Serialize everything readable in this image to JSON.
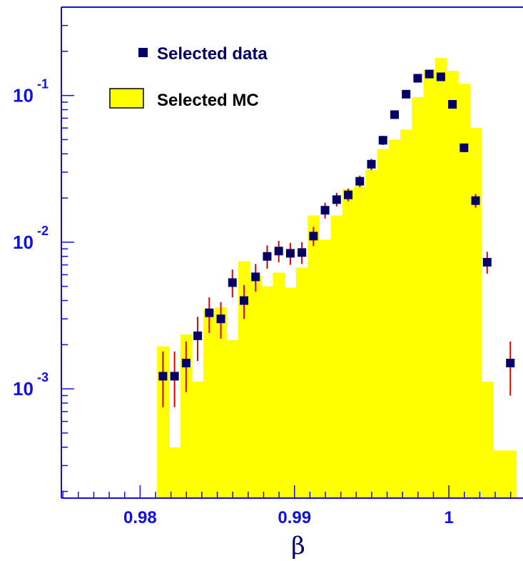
{
  "colors": {
    "axis": "#1010e0",
    "mc_fill": "#ffff00",
    "data_marker": "#000066",
    "error_bar": "#dd0000",
    "text_dark": "#000066",
    "text_black": "#000000"
  },
  "chart_data": {
    "type": "histogram",
    "xlabel": "β",
    "xlim": [
      0.9749,
      1.0048
    ],
    "ylim": [
      0.00018,
      0.4
    ],
    "y_scale": "log",
    "x_ticks": [
      {
        "value": 0.98,
        "label": "0.98"
      },
      {
        "value": 0.99,
        "label": "0.99"
      },
      {
        "value": 1.0,
        "label": "1"
      }
    ],
    "y_ticks": [
      {
        "value": 0.1,
        "base": "10",
        "exp": "-1"
      },
      {
        "value": 0.01,
        "base": "10",
        "exp": "-2"
      },
      {
        "value": 0.001,
        "base": "10",
        "exp": "-3"
      }
    ],
    "legend": {
      "position": "top-left",
      "entries": [
        {
          "label": "Selected data",
          "kind": "marker"
        },
        {
          "label": "Selected MC",
          "kind": "fill"
        }
      ]
    },
    "series": [
      {
        "name": "Selected MC",
        "kind": "histogram",
        "bin_edges": [
          0.9811,
          0.98185,
          0.9826,
          0.98335,
          0.9841,
          0.98485,
          0.9856,
          0.98635,
          0.9871,
          0.98785,
          0.9886,
          0.98935,
          0.9901,
          0.99085,
          0.9916,
          0.99235,
          0.9931,
          0.99385,
          0.9946,
          0.99535,
          0.9961,
          0.99685,
          0.9976,
          0.99835,
          0.9991,
          0.99985,
          1.0006,
          1.00135,
          1.0021,
          1.00285,
          1.0036,
          1.00435
        ],
        "values": [
          0.00195,
          0.0004,
          0.00235,
          0.00112,
          0.00345,
          0.0036,
          0.00215,
          0.0074,
          0.0059,
          0.005,
          0.0062,
          0.0049,
          0.0067,
          0.0152,
          0.0104,
          0.0152,
          0.023,
          0.024,
          0.031,
          0.043,
          0.05,
          0.0585,
          0.0975,
          0.15,
          0.18,
          0.147,
          0.12,
          0.06,
          0.00112,
          0.00038,
          0.00038
        ]
      },
      {
        "name": "Selected data",
        "kind": "points",
        "points": [
          {
            "x": 0.98148,
            "y": 0.00122,
            "lo": 0.00075,
            "hi": 0.0018
          },
          {
            "x": 0.98223,
            "y": 0.00122,
            "lo": 0.00075,
            "hi": 0.0018
          },
          {
            "x": 0.98298,
            "y": 0.0015,
            "lo": 0.00095,
            "hi": 0.0021
          },
          {
            "x": 0.98373,
            "y": 0.0023,
            "lo": 0.00155,
            "hi": 0.0031
          },
          {
            "x": 0.98448,
            "y": 0.0033,
            "lo": 0.0024,
            "hi": 0.0042
          },
          {
            "x": 0.98523,
            "y": 0.003,
            "lo": 0.0022,
            "hi": 0.0039
          },
          {
            "x": 0.98598,
            "y": 0.0053,
            "lo": 0.0042,
            "hi": 0.0065
          },
          {
            "x": 0.98673,
            "y": 0.004,
            "lo": 0.003,
            "hi": 0.0051
          },
          {
            "x": 0.98748,
            "y": 0.0058,
            "lo": 0.0046,
            "hi": 0.0071
          },
          {
            "x": 0.98823,
            "y": 0.008,
            "lo": 0.0066,
            "hi": 0.0095
          },
          {
            "x": 0.98898,
            "y": 0.0087,
            "lo": 0.0073,
            "hi": 0.0102
          },
          {
            "x": 0.98973,
            "y": 0.0084,
            "lo": 0.007,
            "hi": 0.0099
          },
          {
            "x": 0.99048,
            "y": 0.0085,
            "lo": 0.0071,
            "hi": 0.01
          },
          {
            "x": 0.99123,
            "y": 0.011,
            "lo": 0.0094,
            "hi": 0.0127
          },
          {
            "x": 0.99198,
            "y": 0.0165,
            "lo": 0.0145,
            "hi": 0.0186
          },
          {
            "x": 0.99273,
            "y": 0.0195,
            "lo": 0.0175,
            "hi": 0.0217
          },
          {
            "x": 0.99348,
            "y": 0.021,
            "lo": 0.019,
            "hi": 0.0232
          },
          {
            "x": 0.99423,
            "y": 0.026,
            "lo": 0.0237,
            "hi": 0.0284
          },
          {
            "x": 0.99498,
            "y": 0.034,
            "lo": 0.031,
            "hi": 0.037
          },
          {
            "x": 0.99573,
            "y": 0.0495,
            "lo": 0.046,
            "hi": 0.053
          },
          {
            "x": 0.99648,
            "y": 0.074,
            "lo": 0.07,
            "hi": 0.078
          },
          {
            "x": 0.99723,
            "y": 0.102,
            "lo": 0.097,
            "hi": 0.107
          },
          {
            "x": 0.99798,
            "y": 0.131,
            "lo": 0.125,
            "hi": 0.137
          },
          {
            "x": 0.99873,
            "y": 0.14,
            "lo": 0.134,
            "hi": 0.146
          },
          {
            "x": 0.99948,
            "y": 0.134,
            "lo": 0.128,
            "hi": 0.14
          },
          {
            "x": 1.00023,
            "y": 0.087,
            "lo": 0.082,
            "hi": 0.092
          },
          {
            "x": 1.00098,
            "y": 0.044,
            "lo": 0.041,
            "hi": 0.047
          },
          {
            "x": 1.00173,
            "y": 0.0192,
            "lo": 0.0172,
            "hi": 0.0213
          },
          {
            "x": 1.00248,
            "y": 0.0073,
            "lo": 0.0061,
            "hi": 0.0086
          },
          {
            "x": 1.00398,
            "y": 0.0015,
            "lo": 0.0009,
            "hi": 0.0021
          }
        ]
      }
    ]
  }
}
